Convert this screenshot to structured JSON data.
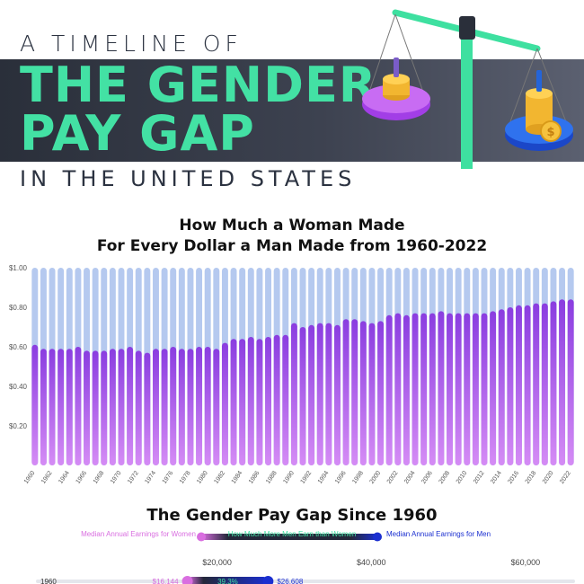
{
  "header": {
    "kicker_top": "A TIMELINE OF",
    "headline_line1": "THE GENDER",
    "headline_line2": "PAY GAP",
    "kicker_bottom": "IN THE UNITED STATES",
    "scale_icon": "balance-scale-coins-icon"
  },
  "chart_data": [
    {
      "type": "bar",
      "title_line1": "How Much a Woman Made",
      "title_line2": "For Every Dollar a Man Made from 1960-2022",
      "categories": [
        "1960",
        "1961",
        "1962",
        "1963",
        "1964",
        "1965",
        "1966",
        "1967",
        "1968",
        "1969",
        "1970",
        "1971",
        "1972",
        "1973",
        "1974",
        "1975",
        "1976",
        "1977",
        "1978",
        "1979",
        "1980",
        "1981",
        "1982",
        "1983",
        "1984",
        "1985",
        "1986",
        "1987",
        "1988",
        "1989",
        "1990",
        "1991",
        "1992",
        "1993",
        "1994",
        "1995",
        "1996",
        "1997",
        "1998",
        "1999",
        "2000",
        "2001",
        "2002",
        "2003",
        "2004",
        "2005",
        "2006",
        "2007",
        "2008",
        "2009",
        "2010",
        "2011",
        "2012",
        "2013",
        "2014",
        "2015",
        "2016",
        "2017",
        "2018",
        "2019",
        "2020",
        "2021",
        "2022"
      ],
      "tick_labels": [
        "1960",
        "1962",
        "1964",
        "1966",
        "1968",
        "1970",
        "1972",
        "1974",
        "1976",
        "1978",
        "1980",
        "1982",
        "1984",
        "1986",
        "1988",
        "1990",
        "1992",
        "1994",
        "1996",
        "1998",
        "2000",
        "2002",
        "2004",
        "2006",
        "2008",
        "2010",
        "2012",
        "2014",
        "2016",
        "2018",
        "2020",
        "2022"
      ],
      "values": [
        0.61,
        0.59,
        0.59,
        0.59,
        0.59,
        0.6,
        0.58,
        0.58,
        0.58,
        0.59,
        0.59,
        0.6,
        0.58,
        0.57,
        0.59,
        0.59,
        0.6,
        0.59,
        0.59,
        0.6,
        0.6,
        0.59,
        0.62,
        0.64,
        0.64,
        0.65,
        0.64,
        0.65,
        0.66,
        0.66,
        0.72,
        0.7,
        0.71,
        0.72,
        0.72,
        0.71,
        0.74,
        0.74,
        0.73,
        0.72,
        0.73,
        0.76,
        0.77,
        0.76,
        0.77,
        0.77,
        0.77,
        0.78,
        0.77,
        0.77,
        0.77,
        0.77,
        0.77,
        0.78,
        0.79,
        0.8,
        0.81,
        0.81,
        0.82,
        0.82,
        0.83,
        0.84,
        0.84
      ],
      "ylim": [
        0,
        1.0
      ],
      "yticks": [
        "$0.20",
        "$0.40",
        "$0.60",
        "$0.80",
        "$1.00"
      ],
      "ytick_values": [
        0.2,
        0.4,
        0.6,
        0.8,
        1.0
      ],
      "colors": {
        "bar_top": "#8a3de0",
        "bar_bottom": "#d58cf5",
        "remainder": "#b5c9ef"
      }
    },
    {
      "type": "bar",
      "title": "The Gender Pay Gap Since 1960",
      "legend": {
        "women": "Median Annual Earnings for Women",
        "gap": "How Much More Men Earn than Women",
        "men": "Median Annual Earnings for Men"
      },
      "xticks": [
        "$20,000",
        "$40,000",
        "$60,000"
      ],
      "xtick_values": [
        20000,
        40000,
        60000
      ],
      "xlim": [
        0,
        67000
      ],
      "rows": [
        {
          "year": "1960",
          "women": 16144,
          "women_label": "$16,144",
          "men": 26608,
          "men_label": "$26,608",
          "gap_label": "39.3%"
        }
      ],
      "colors": {
        "women": "#d96ee0",
        "men": "#1b2fd0",
        "gap_dark": "#24283a",
        "gap_text": "#43e1a4"
      }
    }
  ]
}
